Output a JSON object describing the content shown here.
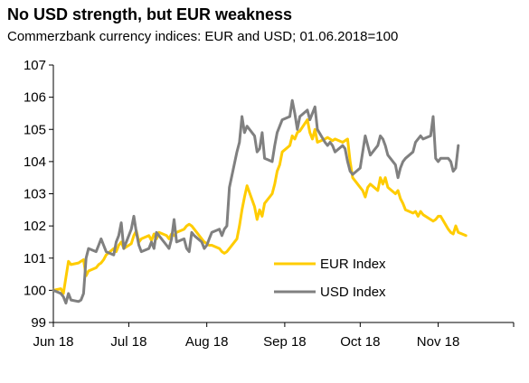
{
  "title": "No USD strength, but EUR weakness",
  "subtitle": "Commerzbank currency indices: EUR and USD; 01.06.2018=100",
  "chart_data": {
    "type": "line",
    "title": "No USD strength, but EUR weakness",
    "subtitle": "Commerzbank currency indices: EUR and USD; 01.06.2018=100",
    "xlabel": "",
    "ylabel": "",
    "x_range": [
      "2018-06-01",
      "2018-12-01"
    ],
    "ylim": [
      99,
      107
    ],
    "yticks": [
      99,
      100,
      101,
      102,
      103,
      104,
      105,
      106,
      107
    ],
    "xtick_labels": [
      "Jun 18",
      "Jul 18",
      "Aug 18",
      "Sep 18",
      "Oct 18",
      "Nov 18"
    ],
    "xtick_dates": [
      "2018-06-01",
      "2018-07-01",
      "2018-08-01",
      "2018-09-01",
      "2018-10-01",
      "2018-11-01"
    ],
    "grid": false,
    "legend_position": "bottom-right",
    "series": [
      {
        "name": "EUR Index",
        "color": "#FFCC00",
        "points": [
          [
            "2018-06-01",
            100.0
          ],
          [
            "2018-06-04",
            100.05
          ],
          [
            "2018-06-05",
            99.9
          ],
          [
            "2018-06-06",
            100.4
          ],
          [
            "2018-06-07",
            100.9
          ],
          [
            "2018-06-08",
            100.8
          ],
          [
            "2018-06-11",
            100.85
          ],
          [
            "2018-06-12",
            100.9
          ],
          [
            "2018-06-13",
            100.95
          ],
          [
            "2018-06-14",
            100.45
          ],
          [
            "2018-06-15",
            100.6
          ],
          [
            "2018-06-18",
            100.7
          ],
          [
            "2018-06-19",
            100.8
          ],
          [
            "2018-06-20",
            100.85
          ],
          [
            "2018-06-21",
            100.95
          ],
          [
            "2018-06-22",
            101.1
          ],
          [
            "2018-06-25",
            101.3
          ],
          [
            "2018-06-26",
            101.2
          ],
          [
            "2018-06-27",
            101.4
          ],
          [
            "2018-06-28",
            101.5
          ],
          [
            "2018-06-29",
            101.3
          ],
          [
            "2018-07-02",
            101.45
          ],
          [
            "2018-07-03",
            101.7
          ],
          [
            "2018-07-04",
            101.85
          ],
          [
            "2018-07-05",
            101.5
          ],
          [
            "2018-07-06",
            101.6
          ],
          [
            "2018-07-09",
            101.7
          ],
          [
            "2018-07-10",
            101.55
          ],
          [
            "2018-07-11",
            101.75
          ],
          [
            "2018-07-12",
            101.6
          ],
          [
            "2018-07-13",
            101.8
          ],
          [
            "2018-07-16",
            101.7
          ],
          [
            "2018-07-17",
            101.6
          ],
          [
            "2018-07-18",
            101.75
          ],
          [
            "2018-07-19",
            101.7
          ],
          [
            "2018-07-20",
            101.8
          ],
          [
            "2018-07-23",
            101.9
          ],
          [
            "2018-07-24",
            102.0
          ],
          [
            "2018-07-25",
            102.05
          ],
          [
            "2018-07-26",
            102.0
          ],
          [
            "2018-07-27",
            101.9
          ],
          [
            "2018-07-30",
            101.6
          ],
          [
            "2018-07-31",
            101.5
          ],
          [
            "2018-08-01",
            101.45
          ],
          [
            "2018-08-02",
            101.4
          ],
          [
            "2018-08-03",
            101.4
          ],
          [
            "2018-08-06",
            101.3
          ],
          [
            "2018-08-07",
            101.2
          ],
          [
            "2018-08-08",
            101.15
          ],
          [
            "2018-08-09",
            101.2
          ],
          [
            "2018-08-10",
            101.3
          ],
          [
            "2018-08-13",
            101.6
          ],
          [
            "2018-08-14",
            102.0
          ],
          [
            "2018-08-15",
            102.5
          ],
          [
            "2018-08-16",
            102.9
          ],
          [
            "2018-08-17",
            103.25
          ],
          [
            "2018-08-20",
            102.6
          ],
          [
            "2018-08-21",
            102.2
          ],
          [
            "2018-08-22",
            102.5
          ],
          [
            "2018-08-23",
            102.3
          ],
          [
            "2018-08-24",
            102.7
          ],
          [
            "2018-08-27",
            103.0
          ],
          [
            "2018-08-28",
            103.3
          ],
          [
            "2018-08-29",
            103.7
          ],
          [
            "2018-08-30",
            103.9
          ],
          [
            "2018-08-31",
            104.3
          ],
          [
            "2018-09-03",
            104.5
          ],
          [
            "2018-09-04",
            104.8
          ],
          [
            "2018-09-05",
            104.7
          ],
          [
            "2018-09-06",
            104.9
          ],
          [
            "2018-09-07",
            104.95
          ],
          [
            "2018-09-10",
            105.3
          ],
          [
            "2018-09-11",
            104.9
          ],
          [
            "2018-09-12",
            104.7
          ],
          [
            "2018-09-13",
            105.0
          ],
          [
            "2018-09-14",
            104.6
          ],
          [
            "2018-09-17",
            104.7
          ],
          [
            "2018-09-18",
            104.75
          ],
          [
            "2018-09-19",
            104.7
          ],
          [
            "2018-09-20",
            104.65
          ],
          [
            "2018-09-21",
            104.7
          ],
          [
            "2018-09-24",
            104.6
          ],
          [
            "2018-09-25",
            104.65
          ],
          [
            "2018-09-26",
            104.7
          ],
          [
            "2018-09-27",
            104.0
          ],
          [
            "2018-09-28",
            103.5
          ],
          [
            "2018-10-01",
            103.2
          ],
          [
            "2018-10-02",
            103.1
          ],
          [
            "2018-10-03",
            102.9
          ],
          [
            "2018-10-04",
            103.2
          ],
          [
            "2018-10-05",
            103.3
          ],
          [
            "2018-10-08",
            103.1
          ],
          [
            "2018-10-09",
            103.5
          ],
          [
            "2018-10-10",
            103.3
          ],
          [
            "2018-10-11",
            103.5
          ],
          [
            "2018-10-12",
            103.2
          ],
          [
            "2018-10-15",
            103.0
          ],
          [
            "2018-10-16",
            103.1
          ],
          [
            "2018-10-17",
            102.85
          ],
          [
            "2018-10-18",
            102.7
          ],
          [
            "2018-10-19",
            102.5
          ],
          [
            "2018-10-22",
            102.4
          ],
          [
            "2018-10-23",
            102.45
          ],
          [
            "2018-10-24",
            102.3
          ],
          [
            "2018-10-25",
            102.45
          ],
          [
            "2018-10-26",
            102.35
          ],
          [
            "2018-10-29",
            102.2
          ],
          [
            "2018-10-30",
            102.15
          ],
          [
            "2018-10-31",
            102.2
          ],
          [
            "2018-11-01",
            102.3
          ],
          [
            "2018-11-02",
            102.3
          ],
          [
            "2018-11-05",
            101.9
          ],
          [
            "2018-11-06",
            101.8
          ],
          [
            "2018-11-07",
            101.75
          ],
          [
            "2018-11-08",
            102.0
          ],
          [
            "2018-11-09",
            101.8
          ],
          [
            "2018-11-12",
            101.7
          ]
        ]
      },
      {
        "name": "USD Index",
        "color": "#808080",
        "points": [
          [
            "2018-06-01",
            100.0
          ],
          [
            "2018-06-04",
            99.9
          ],
          [
            "2018-06-05",
            99.8
          ],
          [
            "2018-06-06",
            99.6
          ],
          [
            "2018-06-07",
            99.9
          ],
          [
            "2018-06-08",
            99.7
          ],
          [
            "2018-06-11",
            99.65
          ],
          [
            "2018-06-12",
            99.7
          ],
          [
            "2018-06-13",
            99.9
          ],
          [
            "2018-06-14",
            101.0
          ],
          [
            "2018-06-15",
            101.3
          ],
          [
            "2018-06-18",
            101.2
          ],
          [
            "2018-06-19",
            101.4
          ],
          [
            "2018-06-20",
            101.6
          ],
          [
            "2018-06-21",
            101.4
          ],
          [
            "2018-06-22",
            101.2
          ],
          [
            "2018-06-25",
            101.1
          ],
          [
            "2018-06-26",
            101.5
          ],
          [
            "2018-06-27",
            101.7
          ],
          [
            "2018-06-28",
            102.1
          ],
          [
            "2018-06-29",
            101.3
          ],
          [
            "2018-07-02",
            101.9
          ],
          [
            "2018-07-03",
            102.3
          ],
          [
            "2018-07-04",
            101.8
          ],
          [
            "2018-07-05",
            101.4
          ],
          [
            "2018-07-06",
            101.2
          ],
          [
            "2018-07-09",
            101.3
          ],
          [
            "2018-07-10",
            101.5
          ],
          [
            "2018-07-11",
            101.3
          ],
          [
            "2018-07-12",
            101.8
          ],
          [
            "2018-07-13",
            101.7
          ],
          [
            "2018-07-16",
            101.4
          ],
          [
            "2018-07-17",
            101.3
          ],
          [
            "2018-07-18",
            101.6
          ],
          [
            "2018-07-19",
            102.2
          ],
          [
            "2018-07-20",
            101.5
          ],
          [
            "2018-07-23",
            101.6
          ],
          [
            "2018-07-24",
            101.3
          ],
          [
            "2018-07-25",
            101.2
          ],
          [
            "2018-07-26",
            101.8
          ],
          [
            "2018-07-27",
            101.7
          ],
          [
            "2018-07-30",
            101.5
          ],
          [
            "2018-07-31",
            101.3
          ],
          [
            "2018-08-01",
            101.4
          ],
          [
            "2018-08-02",
            101.6
          ],
          [
            "2018-08-03",
            101.8
          ],
          [
            "2018-08-06",
            101.9
          ],
          [
            "2018-08-07",
            101.7
          ],
          [
            "2018-08-08",
            101.9
          ],
          [
            "2018-08-09",
            102.0
          ],
          [
            "2018-08-10",
            103.2
          ],
          [
            "2018-08-13",
            104.3
          ],
          [
            "2018-08-14",
            104.6
          ],
          [
            "2018-08-15",
            105.4
          ],
          [
            "2018-08-16",
            104.9
          ],
          [
            "2018-08-17",
            105.1
          ],
          [
            "2018-08-20",
            104.8
          ],
          [
            "2018-08-21",
            104.3
          ],
          [
            "2018-08-22",
            104.4
          ],
          [
            "2018-08-23",
            104.9
          ],
          [
            "2018-08-24",
            104.1
          ],
          [
            "2018-08-27",
            104.0
          ],
          [
            "2018-08-28",
            104.5
          ],
          [
            "2018-08-29",
            104.9
          ],
          [
            "2018-08-30",
            105.1
          ],
          [
            "2018-08-31",
            105.3
          ],
          [
            "2018-09-03",
            105.4
          ],
          [
            "2018-09-04",
            105.9
          ],
          [
            "2018-09-05",
            105.5
          ],
          [
            "2018-09-06",
            105.0
          ],
          [
            "2018-09-07",
            105.4
          ],
          [
            "2018-09-10",
            105.6
          ],
          [
            "2018-09-11",
            105.3
          ],
          [
            "2018-09-12",
            105.5
          ],
          [
            "2018-09-13",
            105.7
          ],
          [
            "2018-09-14",
            105.0
          ],
          [
            "2018-09-17",
            104.6
          ],
          [
            "2018-09-18",
            104.5
          ],
          [
            "2018-09-19",
            104.6
          ],
          [
            "2018-09-20",
            104.5
          ],
          [
            "2018-09-21",
            104.3
          ],
          [
            "2018-09-24",
            104.5
          ],
          [
            "2018-09-25",
            104.4
          ],
          [
            "2018-09-26",
            104.0
          ],
          [
            "2018-09-27",
            103.7
          ],
          [
            "2018-09-28",
            103.6
          ],
          [
            "2018-10-01",
            103.8
          ],
          [
            "2018-10-02",
            104.3
          ],
          [
            "2018-10-03",
            104.8
          ],
          [
            "2018-10-04",
            104.5
          ],
          [
            "2018-10-05",
            104.2
          ],
          [
            "2018-10-08",
            104.5
          ],
          [
            "2018-10-09",
            104.8
          ],
          [
            "2018-10-10",
            104.7
          ],
          [
            "2018-10-11",
            104.5
          ],
          [
            "2018-10-12",
            104.2
          ],
          [
            "2018-10-15",
            103.9
          ],
          [
            "2018-10-16",
            103.5
          ],
          [
            "2018-10-17",
            103.8
          ],
          [
            "2018-10-18",
            104.0
          ],
          [
            "2018-10-19",
            104.1
          ],
          [
            "2018-10-22",
            104.3
          ],
          [
            "2018-10-23",
            104.6
          ],
          [
            "2018-10-24",
            104.7
          ],
          [
            "2018-10-25",
            104.8
          ],
          [
            "2018-10-26",
            104.7
          ],
          [
            "2018-10-29",
            104.8
          ],
          [
            "2018-10-30",
            105.4
          ],
          [
            "2018-10-31",
            104.1
          ],
          [
            "2018-11-01",
            104.0
          ],
          [
            "2018-11-02",
            104.1
          ],
          [
            "2018-11-05",
            104.1
          ],
          [
            "2018-11-06",
            104.0
          ],
          [
            "2018-11-07",
            103.7
          ],
          [
            "2018-11-08",
            103.8
          ],
          [
            "2018-11-09",
            104.5
          ]
        ]
      }
    ]
  }
}
